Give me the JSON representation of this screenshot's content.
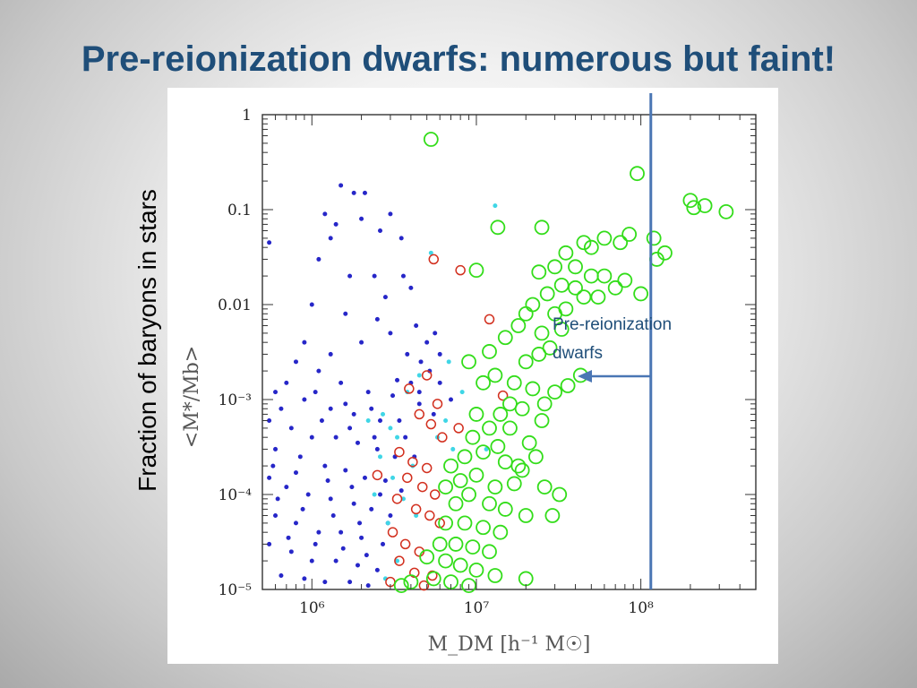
{
  "title": "Pre-reionization dwarfs: numerous but faint!",
  "side_label": "Fraction of baryons in stars",
  "colors": {
    "title": "#1f4e79",
    "blue_points": "#2626c8",
    "cyan_points": "#3fd6e6",
    "red_circles": "#d22f1e",
    "green_circles": "#33dd1a",
    "threshold_line": "#4a76b4"
  },
  "chart_data": {
    "type": "scatter",
    "xscale": "log",
    "yscale": "log",
    "xlim": [
      500000,
      500000000
    ],
    "ylim": [
      1e-05,
      1
    ],
    "xlabel": "M_DM [h⁻¹ M☉]",
    "ylabel": "<M*/Mb>",
    "x_ticks": [
      "10⁶",
      "10⁷",
      "10⁸"
    ],
    "y_ticks": [
      "1",
      "0.1",
      "0.01",
      "10⁻³",
      "10⁻⁴",
      "10⁻⁵"
    ],
    "vertical_line_x": 115000000,
    "annotation": {
      "text_lines": [
        "Pre-reionization",
        "dwarfs"
      ],
      "arrow": "left"
    },
    "series": [
      {
        "marker": "dot",
        "color": "#2626c8",
        "points": [
          [
            550000,
            0.045
          ],
          [
            1500000,
            0.18
          ],
          [
            1800000,
            0.15
          ],
          [
            2100000,
            0.15
          ],
          [
            1200000,
            0.09
          ],
          [
            1400000,
            0.07
          ],
          [
            1300000,
            0.05
          ],
          [
            2000000,
            0.08
          ],
          [
            3000000,
            0.09
          ],
          [
            2600000,
            0.06
          ],
          [
            3500000,
            0.05
          ],
          [
            1100000,
            0.03
          ],
          [
            1700000,
            0.02
          ],
          [
            2400000,
            0.02
          ],
          [
            4000000,
            0.015
          ],
          [
            1000000,
            0.01
          ],
          [
            1600000,
            0.008
          ],
          [
            2500000,
            0.007
          ],
          [
            3000000,
            0.005
          ],
          [
            900000,
            0.004
          ],
          [
            1300000,
            0.003
          ],
          [
            2000000,
            0.004
          ],
          [
            3800000,
            0.003
          ],
          [
            4600000,
            0.0025
          ],
          [
            6000000,
            0.003
          ],
          [
            800000,
            0.0025
          ],
          [
            1100000,
            0.002
          ],
          [
            1500000,
            0.0015
          ],
          [
            2200000,
            0.0012
          ],
          [
            3100000,
            0.0011
          ],
          [
            4000000,
            0.0015
          ],
          [
            5200000,
            0.002
          ],
          [
            600000,
            0.0012
          ],
          [
            900000,
            0.001
          ],
          [
            1300000,
            0.0008
          ],
          [
            1800000,
            0.0007
          ],
          [
            2600000,
            0.0006
          ],
          [
            3400000,
            0.0006
          ],
          [
            4500000,
            0.0009
          ],
          [
            550000,
            0.0006
          ],
          [
            750000,
            0.0005
          ],
          [
            1000000,
            0.0004
          ],
          [
            1400000,
            0.0004
          ],
          [
            1900000,
            0.00035
          ],
          [
            2500000,
            0.0003
          ],
          [
            3200000,
            0.00025
          ],
          [
            600000,
            0.0003
          ],
          [
            850000,
            0.00025
          ],
          [
            1200000,
            0.0002
          ],
          [
            1600000,
            0.00018
          ],
          [
            2100000,
            0.00015
          ],
          [
            2800000,
            0.00014
          ],
          [
            550000,
            0.00015
          ],
          [
            700000,
            0.00012
          ],
          [
            950000,
            0.0001
          ],
          [
            1300000,
            9e-05
          ],
          [
            1800000,
            8e-05
          ],
          [
            2300000,
            7e-05
          ],
          [
            3000000,
            6e-05
          ],
          [
            600000,
            6e-05
          ],
          [
            800000,
            5e-05
          ],
          [
            1100000,
            4e-05
          ],
          [
            1500000,
            4e-05
          ],
          [
            2000000,
            3.5e-05
          ],
          [
            2700000,
            3e-05
          ],
          [
            550000,
            3e-05
          ],
          [
            750000,
            2.5e-05
          ],
          [
            1000000,
            2e-05
          ],
          [
            1400000,
            2e-05
          ],
          [
            1900000,
            1.8e-05
          ],
          [
            2500000,
            1.6e-05
          ],
          [
            650000,
            1.4e-05
          ],
          [
            900000,
            1.3e-05
          ],
          [
            1200000,
            1.2e-05
          ],
          [
            1700000,
            1.2e-05
          ],
          [
            2200000,
            1.1e-05
          ],
          [
            5000000,
            0.004
          ],
          [
            6000000,
            0.0015
          ],
          [
            7000000,
            0.001
          ],
          [
            4500000,
            0.0012
          ],
          [
            5500000,
            0.0007
          ],
          [
            3700000,
            0.0004
          ],
          [
            4200000,
            0.00025
          ],
          [
            700000,
            0.0015
          ],
          [
            1050000,
            0.0012
          ],
          [
            1600000,
            0.0009
          ],
          [
            2300000,
            0.0008
          ],
          [
            3300000,
            0.0016
          ],
          [
            650000,
            0.0008
          ],
          [
            1150000,
            0.0006
          ],
          [
            1700000,
            0.0005
          ],
          [
            2400000,
            0.0004
          ],
          [
            580000,
            0.0002
          ],
          [
            800000,
            0.00017
          ],
          [
            1250000,
            0.00014
          ],
          [
            1750000,
            0.00012
          ],
          [
            2600000,
            0.0001
          ],
          [
            3500000,
            0.00011
          ],
          [
            620000,
            9e-05
          ],
          [
            880000,
            7e-05
          ],
          [
            1350000,
            6e-05
          ],
          [
            1950000,
            5e-05
          ],
          [
            2900000,
            5e-05
          ],
          [
            720000,
            3.5e-05
          ],
          [
            1050000,
            3e-05
          ],
          [
            1550000,
            2.7e-05
          ],
          [
            2150000,
            2.3e-05
          ],
          [
            5600000,
            0.005
          ],
          [
            4300000,
            0.006
          ],
          [
            3600000,
            0.02
          ],
          [
            2800000,
            0.012
          ]
        ]
      },
      {
        "marker": "dot",
        "color": "#3fd6e6",
        "points": [
          [
            13000000,
            0.11
          ],
          [
            5300000,
            0.035
          ],
          [
            4500000,
            0.0018
          ],
          [
            3800000,
            0.0012
          ],
          [
            2700000,
            0.0007
          ],
          [
            3000000,
            0.0005
          ],
          [
            2200000,
            0.0006
          ],
          [
            3300000,
            0.0004
          ],
          [
            2600000,
            0.00025
          ],
          [
            3100000,
            0.00015
          ],
          [
            4100000,
            0.0002
          ],
          [
            2400000,
            0.0001
          ],
          [
            3600000,
            9e-05
          ],
          [
            2900000,
            5e-05
          ],
          [
            4300000,
            6e-05
          ],
          [
            3300000,
            2e-05
          ],
          [
            2800000,
            1.3e-05
          ],
          [
            6500000,
            0.0006
          ],
          [
            5800000,
            0.0004
          ],
          [
            7200000,
            0.0003
          ],
          [
            11500000,
            0.0003
          ],
          [
            8200000,
            0.0012
          ],
          [
            6800000,
            0.0025
          ]
        ]
      },
      {
        "marker": "open-circle-small",
        "color": "#d22f1e",
        "points": [
          [
            5500000,
            0.03
          ],
          [
            8000000,
            0.023
          ],
          [
            12000000,
            0.007
          ],
          [
            5000000,
            0.0018
          ],
          [
            3900000,
            0.0013
          ],
          [
            14500000,
            0.0011
          ],
          [
            5800000,
            0.0009
          ],
          [
            4500000,
            0.0007
          ],
          [
            5300000,
            0.00055
          ],
          [
            6200000,
            0.0004
          ],
          [
            7800000,
            0.0005
          ],
          [
            3400000,
            0.00028
          ],
          [
            4100000,
            0.00022
          ],
          [
            5000000,
            0.00019
          ],
          [
            2500000,
            0.00016
          ],
          [
            3800000,
            0.00015
          ],
          [
            4700000,
            0.00012
          ],
          [
            5600000,
            0.0001
          ],
          [
            3300000,
            9e-05
          ],
          [
            4300000,
            7e-05
          ],
          [
            5200000,
            6e-05
          ],
          [
            6000000,
            5e-05
          ],
          [
            3100000,
            4e-05
          ],
          [
            3700000,
            3e-05
          ],
          [
            4500000,
            2.5e-05
          ],
          [
            3400000,
            2e-05
          ],
          [
            4200000,
            1.5e-05
          ],
          [
            5400000,
            1.4e-05
          ],
          [
            3000000,
            1.2e-05
          ],
          [
            4800000,
            1.1e-05
          ]
        ]
      },
      {
        "marker": "open-circle-large",
        "color": "#33dd1a",
        "points": [
          [
            5300000,
            0.55
          ],
          [
            95000000,
            0.24
          ],
          [
            200000000,
            0.125
          ],
          [
            210000000,
            0.105
          ],
          [
            245000000,
            0.11
          ],
          [
            330000000,
            0.095
          ],
          [
            13500000,
            0.065
          ],
          [
            25000000,
            0.065
          ],
          [
            120000000,
            0.05
          ],
          [
            140000000,
            0.035
          ],
          [
            125000000,
            0.03
          ],
          [
            85000000,
            0.055
          ],
          [
            75000000,
            0.045
          ],
          [
            60000000,
            0.05
          ],
          [
            50000000,
            0.04
          ],
          [
            45000000,
            0.045
          ],
          [
            35000000,
            0.035
          ],
          [
            40000000,
            0.025
          ],
          [
            30000000,
            0.025
          ],
          [
            24000000,
            0.022
          ],
          [
            10000000,
            0.023
          ],
          [
            60000000,
            0.02
          ],
          [
            80000000,
            0.018
          ],
          [
            50000000,
            0.02
          ],
          [
            40000000,
            0.015
          ],
          [
            45000000,
            0.012
          ],
          [
            33000000,
            0.016
          ],
          [
            27000000,
            0.013
          ],
          [
            22000000,
            0.01
          ],
          [
            30000000,
            0.008
          ],
          [
            20000000,
            0.008
          ],
          [
            35000000,
            0.009
          ],
          [
            55000000,
            0.012
          ],
          [
            70000000,
            0.015
          ],
          [
            100000000,
            0.013
          ],
          [
            18000000,
            0.006
          ],
          [
            25000000,
            0.005
          ],
          [
            15000000,
            0.0045
          ],
          [
            28000000,
            0.0035
          ],
          [
            12000000,
            0.0032
          ],
          [
            20000000,
            0.0025
          ],
          [
            9000000,
            0.0025
          ],
          [
            13000000,
            0.0018
          ],
          [
            17000000,
            0.0015
          ],
          [
            11000000,
            0.0015
          ],
          [
            22000000,
            0.0013
          ],
          [
            30000000,
            0.0012
          ],
          [
            36000000,
            0.0014
          ],
          [
            43000000,
            0.0018
          ],
          [
            26000000,
            0.0009
          ],
          [
            19000000,
            0.0008
          ],
          [
            14000000,
            0.0007
          ],
          [
            10000000,
            0.0007
          ],
          [
            25000000,
            0.0006
          ],
          [
            16000000,
            0.0005
          ],
          [
            12000000,
            0.0005
          ],
          [
            9500000,
            0.0004
          ],
          [
            21000000,
            0.00035
          ],
          [
            13500000,
            0.00032
          ],
          [
            11000000,
            0.00028
          ],
          [
            8500000,
            0.00025
          ],
          [
            7000000,
            0.0002
          ],
          [
            15000000,
            0.00022
          ],
          [
            19000000,
            0.00018
          ],
          [
            10000000,
            0.00016
          ],
          [
            8000000,
            0.00014
          ],
          [
            6500000,
            0.00012
          ],
          [
            13000000,
            0.00012
          ],
          [
            17000000,
            0.00013
          ],
          [
            26000000,
            0.00012
          ],
          [
            32000000,
            0.0001
          ],
          [
            9000000,
            0.0001
          ],
          [
            7500000,
            8e-05
          ],
          [
            12000000,
            8e-05
          ],
          [
            15000000,
            7e-05
          ],
          [
            20000000,
            6e-05
          ],
          [
            29000000,
            6e-05
          ],
          [
            6500000,
            5e-05
          ],
          [
            8500000,
            5e-05
          ],
          [
            11000000,
            4.5e-05
          ],
          [
            14000000,
            4e-05
          ],
          [
            6000000,
            3e-05
          ],
          [
            7500000,
            3e-05
          ],
          [
            9500000,
            2.8e-05
          ],
          [
            12000000,
            2.5e-05
          ],
          [
            5000000,
            2.2e-05
          ],
          [
            6500000,
            2e-05
          ],
          [
            8000000,
            1.8e-05
          ],
          [
            10000000,
            1.6e-05
          ],
          [
            13000000,
            1.4e-05
          ],
          [
            5500000,
            1.3e-05
          ],
          [
            7000000,
            1.2e-05
          ],
          [
            9000000,
            1.1e-05
          ],
          [
            20000000,
            1.3e-05
          ],
          [
            4000000,
            1.2e-05
          ],
          [
            3500000,
            1.1e-05
          ],
          [
            18000000,
            0.0002
          ],
          [
            23000000,
            0.00025
          ],
          [
            16000000,
            0.0009
          ],
          [
            24000000,
            0.003
          ],
          [
            33000000,
            0.0055
          ]
        ]
      }
    ]
  }
}
